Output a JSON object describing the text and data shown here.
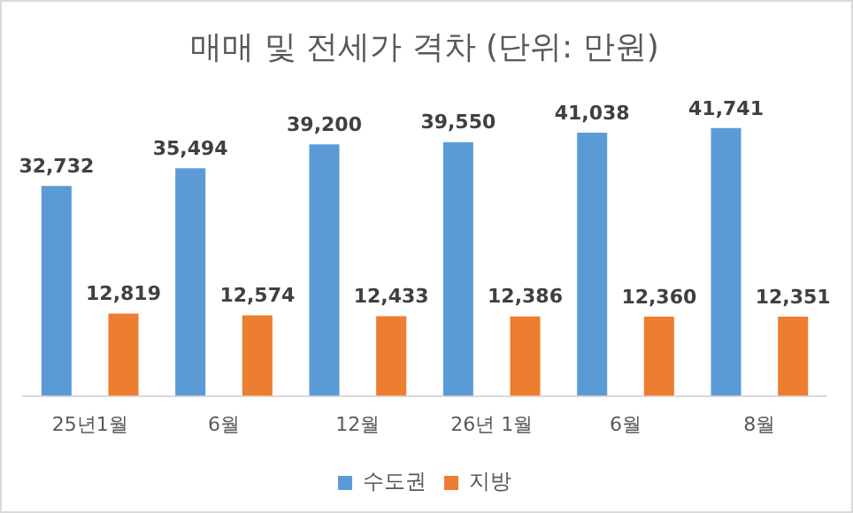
{
  "chart_data": {
    "type": "bar",
    "title": "매매 및 전세가 격차 (단위: 만원)",
    "categories": [
      "25년1월",
      "6월",
      "12월",
      "26년 1월",
      "6월",
      "8월"
    ],
    "series": [
      {
        "name": "수도권",
        "color": "#5b9bd5",
        "values": [
          32732,
          35494,
          39200,
          39550,
          41038,
          41741
        ],
        "value_labels": [
          "32,732",
          "35,494",
          "39,200",
          "39,550",
          "41,038",
          "41,741"
        ]
      },
      {
        "name": "지방",
        "color": "#ed7d31",
        "values": [
          12819,
          12574,
          12433,
          12386,
          12360,
          12351
        ],
        "value_labels": [
          "12,819",
          "12,574",
          "12,433",
          "12,386",
          "12,360",
          "12,351"
        ]
      }
    ],
    "legend": "bottom",
    "grid": false
  }
}
